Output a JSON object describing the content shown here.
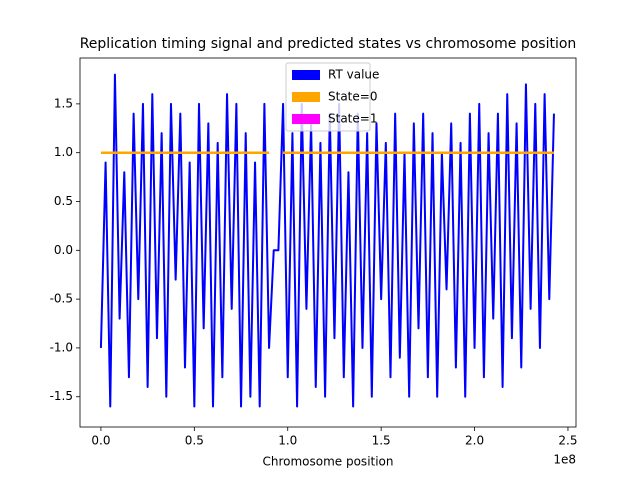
{
  "chart_data": {
    "type": "line",
    "title": "Replication timing signal and predicted states vs chromosome position",
    "x_label": "Chromosome position",
    "x_offset": "1e8",
    "x": [
      0,
      0.025,
      0.05,
      0.075,
      0.1,
      0.125,
      0.15,
      0.175,
      0.2,
      0.225,
      0.25,
      0.275,
      0.3,
      0.325,
      0.35,
      0.375,
      0.4,
      0.425,
      0.45,
      0.475,
      0.5,
      0.525,
      0.55,
      0.575,
      0.6,
      0.625,
      0.65,
      0.675,
      0.7,
      0.725,
      0.75,
      0.775,
      0.8,
      0.825,
      0.85,
      0.875,
      0.9,
      0.925,
      0.95,
      0.975,
      1,
      1.025,
      1.05,
      1.075,
      1.1,
      1.125,
      1.15,
      1.175,
      1.2,
      1.225,
      1.25,
      1.275,
      1.3,
      1.325,
      1.35,
      1.375,
      1.4,
      1.425,
      1.45,
      1.475,
      1.5,
      1.525,
      1.55,
      1.575,
      1.6,
      1.625,
      1.65,
      1.675,
      1.7,
      1.725,
      1.75,
      1.775,
      1.8,
      1.825,
      1.85,
      1.875,
      1.9,
      1.925,
      1.95,
      1.975,
      2,
      2.025,
      2.05,
      2.075,
      2.1,
      2.125,
      2.15,
      2.175,
      2.2,
      2.225,
      2.25,
      2.275,
      2.3,
      2.325,
      2.35,
      2.375,
      2.4,
      2.425
    ],
    "series": [
      {
        "name": "RT value",
        "color": "#0000ff",
        "values": [
          -1.0,
          0.9,
          -1.6,
          1.8,
          -0.7,
          0.8,
          -1.3,
          1.4,
          -0.5,
          1.5,
          -1.4,
          1.6,
          -0.9,
          1.2,
          -1.5,
          1.5,
          -0.3,
          1.4,
          -1.2,
          0.9,
          -1.6,
          1.5,
          -0.8,
          1.3,
          -1.6,
          1.1,
          -1.3,
          1.6,
          -0.6,
          1.5,
          -1.6,
          1.2,
          -1.5,
          0.9,
          -1.6,
          1.5,
          -1.0,
          0.0,
          0.0,
          1.5,
          -1.3,
          1.2,
          -1.6,
          1.5,
          -0.6,
          1.3,
          -1.4,
          1.1,
          -1.5,
          1.4,
          -0.9,
          1.5,
          -1.3,
          0.8,
          -1.6,
          1.4,
          -1.0,
          1.2,
          -1.5,
          1.3,
          -0.5,
          1.1,
          -1.3,
          1.4,
          -1.1,
          1.0,
          -1.5,
          1.3,
          -0.8,
          1.4,
          -1.3,
          1.2,
          -1.5,
          1.0,
          -0.4,
          1.3,
          -1.2,
          1.1,
          -1.5,
          1.4,
          -1.0,
          1.5,
          -1.3,
          1.2,
          -0.7,
          1.4,
          -1.4,
          1.6,
          -0.9,
          1.3,
          -1.2,
          1.7,
          -0.6,
          1.5,
          -1.0,
          1.6,
          -0.5,
          1.4
        ]
      },
      {
        "name": "State=0",
        "color": "#ffa500",
        "values": [
          1,
          1,
          1,
          1,
          1,
          1,
          1,
          1,
          1,
          1,
          1,
          1,
          1,
          1,
          1,
          1,
          1,
          1,
          1,
          1,
          1,
          1,
          1,
          1,
          1,
          1,
          1,
          1,
          1,
          1,
          1,
          1,
          1,
          1,
          1,
          1,
          1,
          null,
          null,
          1,
          1,
          1,
          1,
          1,
          1,
          1,
          1,
          1,
          1,
          1,
          1,
          1,
          1,
          1,
          1,
          1,
          1,
          1,
          1,
          1,
          1,
          1,
          1,
          1,
          1,
          1,
          1,
          1,
          1,
          1,
          1,
          1,
          1,
          1,
          1,
          1,
          1,
          1,
          1,
          1,
          1,
          1,
          1,
          1,
          1,
          1,
          1,
          1,
          1,
          1,
          1,
          1,
          1,
          1,
          1,
          1,
          1,
          1
        ]
      },
      {
        "name": "State=1",
        "color": "#ff00ff",
        "values": [
          null,
          null,
          null,
          null,
          null,
          null,
          null,
          null,
          null,
          null,
          null,
          null,
          null,
          null,
          null,
          null,
          null,
          null,
          null,
          null,
          null,
          null,
          null,
          null,
          null,
          null,
          null,
          null,
          null,
          null,
          null,
          null,
          null,
          null,
          null,
          null,
          null,
          null,
          null,
          null,
          null,
          null,
          null,
          null,
          null,
          null,
          null,
          null,
          null,
          null,
          null,
          null,
          null,
          null,
          null,
          null,
          null,
          null,
          null,
          null,
          null,
          null,
          null,
          null,
          null,
          null,
          null,
          null,
          null,
          null,
          null,
          null,
          null,
          null,
          null,
          null,
          null,
          null,
          null,
          null,
          null,
          null,
          null,
          null,
          null,
          null,
          null,
          null,
          null,
          null,
          null,
          null,
          null,
          null,
          null,
          null,
          null,
          null
        ]
      }
    ],
    "xlim": [
      -0.112,
      2.543
    ],
    "xticks": [
      {
        "value": 0,
        "label": "0.0"
      },
      0.5,
      {
        "value": 1,
        "label": "1.0"
      },
      1.5,
      {
        "value": 2,
        "label": "2.0"
      },
      2.5
    ],
    "ylim": [
      -1.81,
      1.97
    ],
    "yticks": [
      -1.5,
      {
        "value": -1,
        "label": "-1.0"
      },
      -0.5,
      {
        "value": 0,
        "label": "0.0"
      },
      0.5,
      {
        "value": 1,
        "label": "1.0"
      },
      1.5
    ],
    "legend": "upper center"
  }
}
